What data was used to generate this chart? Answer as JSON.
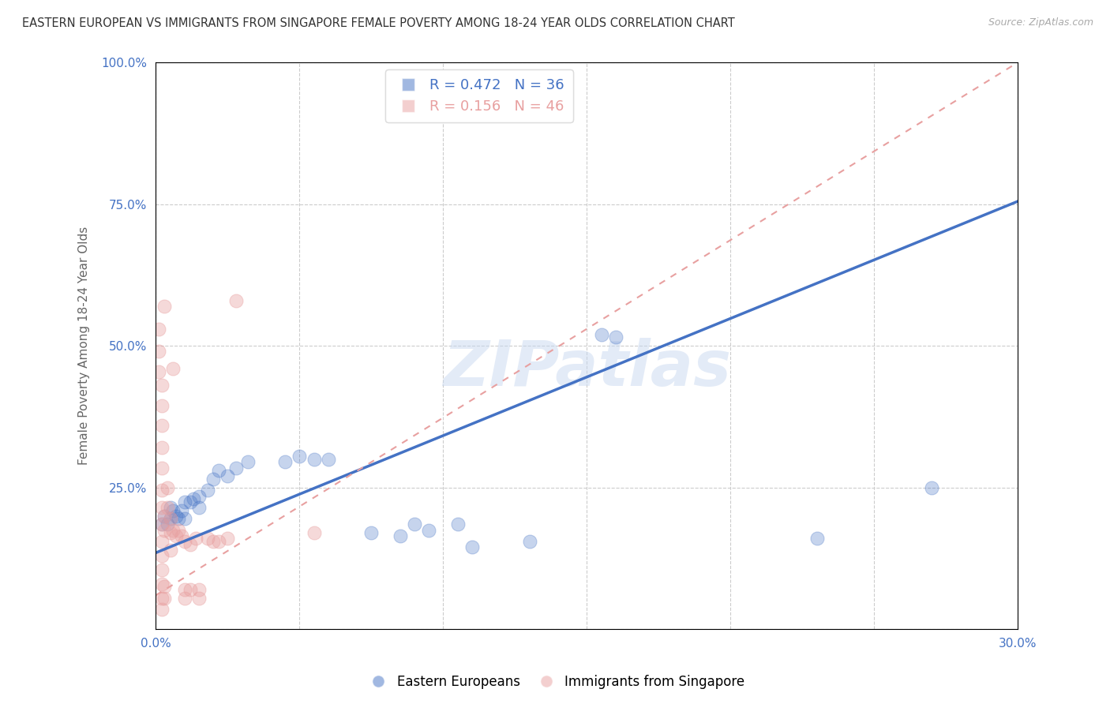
{
  "title": "EASTERN EUROPEAN VS IMMIGRANTS FROM SINGAPORE FEMALE POVERTY AMONG 18-24 YEAR OLDS CORRELATION CHART",
  "source": "Source: ZipAtlas.com",
  "ylabel": "Female Poverty Among 18-24 Year Olds",
  "xlim": [
    0.0,
    0.3
  ],
  "ylim": [
    0.0,
    1.0
  ],
  "xticks": [
    0.0,
    0.05,
    0.1,
    0.15,
    0.2,
    0.25,
    0.3
  ],
  "xticklabels": [
    "0.0%",
    "",
    "",
    "",
    "",
    "",
    "30.0%"
  ],
  "yticks": [
    0.0,
    0.25,
    0.5,
    0.75,
    1.0
  ],
  "yticklabels": [
    "",
    "25.0%",
    "50.0%",
    "75.0%",
    "100.0%"
  ],
  "legend_labels": [
    "Eastern Europeans",
    "Immigrants from Singapore"
  ],
  "blue_R": 0.472,
  "blue_N": 36,
  "pink_R": 0.156,
  "pink_N": 46,
  "blue_scatter": [
    [
      0.002,
      0.185
    ],
    [
      0.003,
      0.2
    ],
    [
      0.004,
      0.185
    ],
    [
      0.005,
      0.215
    ],
    [
      0.005,
      0.195
    ],
    [
      0.006,
      0.21
    ],
    [
      0.007,
      0.2
    ],
    [
      0.008,
      0.195
    ],
    [
      0.009,
      0.21
    ],
    [
      0.01,
      0.225
    ],
    [
      0.01,
      0.195
    ],
    [
      0.012,
      0.225
    ],
    [
      0.013,
      0.23
    ],
    [
      0.015,
      0.235
    ],
    [
      0.015,
      0.215
    ],
    [
      0.018,
      0.245
    ],
    [
      0.02,
      0.265
    ],
    [
      0.022,
      0.28
    ],
    [
      0.025,
      0.27
    ],
    [
      0.028,
      0.285
    ],
    [
      0.032,
      0.295
    ],
    [
      0.045,
      0.295
    ],
    [
      0.05,
      0.305
    ],
    [
      0.055,
      0.3
    ],
    [
      0.06,
      0.3
    ],
    [
      0.075,
      0.17
    ],
    [
      0.085,
      0.165
    ],
    [
      0.09,
      0.185
    ],
    [
      0.095,
      0.175
    ],
    [
      0.105,
      0.185
    ],
    [
      0.11,
      0.145
    ],
    [
      0.13,
      0.155
    ],
    [
      0.155,
      0.52
    ],
    [
      0.16,
      0.515
    ],
    [
      0.23,
      0.16
    ],
    [
      0.27,
      0.25
    ]
  ],
  "pink_scatter": [
    [
      0.001,
      0.53
    ],
    [
      0.001,
      0.49
    ],
    [
      0.001,
      0.455
    ],
    [
      0.002,
      0.43
    ],
    [
      0.002,
      0.395
    ],
    [
      0.002,
      0.36
    ],
    [
      0.002,
      0.32
    ],
    [
      0.002,
      0.285
    ],
    [
      0.002,
      0.245
    ],
    [
      0.002,
      0.215
    ],
    [
      0.002,
      0.185
    ],
    [
      0.002,
      0.155
    ],
    [
      0.002,
      0.13
    ],
    [
      0.002,
      0.105
    ],
    [
      0.002,
      0.08
    ],
    [
      0.002,
      0.055
    ],
    [
      0.002,
      0.035
    ],
    [
      0.003,
      0.57
    ],
    [
      0.003,
      0.2
    ],
    [
      0.003,
      0.175
    ],
    [
      0.003,
      0.075
    ],
    [
      0.003,
      0.055
    ],
    [
      0.004,
      0.25
    ],
    [
      0.004,
      0.215
    ],
    [
      0.005,
      0.195
    ],
    [
      0.005,
      0.17
    ],
    [
      0.005,
      0.14
    ],
    [
      0.006,
      0.46
    ],
    [
      0.006,
      0.175
    ],
    [
      0.007,
      0.165
    ],
    [
      0.008,
      0.175
    ],
    [
      0.009,
      0.165
    ],
    [
      0.01,
      0.155
    ],
    [
      0.01,
      0.07
    ],
    [
      0.01,
      0.055
    ],
    [
      0.012,
      0.15
    ],
    [
      0.012,
      0.07
    ],
    [
      0.014,
      0.16
    ],
    [
      0.015,
      0.07
    ],
    [
      0.015,
      0.055
    ],
    [
      0.018,
      0.16
    ],
    [
      0.02,
      0.155
    ],
    [
      0.022,
      0.155
    ],
    [
      0.025,
      0.16
    ],
    [
      0.028,
      0.58
    ],
    [
      0.055,
      0.17
    ]
  ],
  "blue_line": [
    [
      0.0,
      0.135
    ],
    [
      0.3,
      0.755
    ]
  ],
  "pink_line": [
    [
      0.0,
      0.06
    ],
    [
      0.3,
      1.0
    ]
  ],
  "blue_line_color": "#4472c4",
  "pink_line_color": "#e8a0a0",
  "pink_line_style": "--",
  "watermark": "ZIPatlas",
  "background_color": "#ffffff",
  "axis_label_color": "#4472c4",
  "grid_color": "#cccccc",
  "title_fontsize": 10.5,
  "axis_label_fontsize": 11,
  "tick_fontsize": 11,
  "source_text": "Source: ZipAtlas.com"
}
